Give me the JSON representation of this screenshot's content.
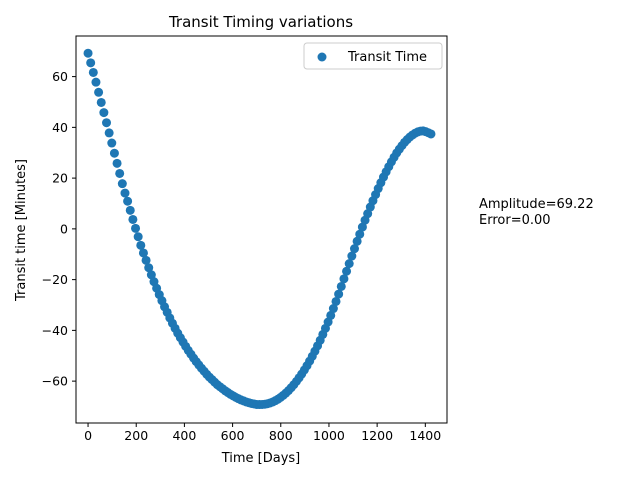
{
  "chart_data": {
    "type": "scatter",
    "title": "Transit Timing variations",
    "xlabel": "Time [Days]",
    "ylabel": "Transit time [Minutes]",
    "xlim": [
      -50,
      1490
    ],
    "ylim": [
      -76.5,
      76
    ],
    "xticks": [
      0,
      200,
      400,
      600,
      800,
      1000,
      1200,
      1400
    ],
    "yticks": [
      -60,
      -40,
      -20,
      0,
      20,
      40,
      60
    ],
    "grid": false,
    "legend_position": "top-right",
    "series": [
      {
        "name": "Transit Time",
        "color": "#1f77b4",
        "x": [
          0,
          10.95,
          21.9,
          32.85,
          43.8,
          54.75,
          65.7,
          76.65,
          87.6,
          98.55,
          109.5,
          120.45,
          131.4,
          142.35,
          153.3,
          164.25,
          175.2,
          186.15,
          197.1,
          208.05,
          219,
          229.95,
          240.9,
          251.85,
          262.8,
          273.75,
          284.7,
          295.65,
          306.6,
          317.55,
          328.5,
          339.45,
          350.4,
          361.35,
          372.3,
          383.25,
          394.2,
          405.15,
          416.1,
          427.05,
          438,
          448.95,
          459.9,
          470.85,
          481.8,
          492.75,
          503.7,
          514.65,
          525.6,
          536.55,
          547.5,
          558.45,
          569.4,
          580.35,
          591.3,
          602.25,
          613.2,
          624.15,
          635.1,
          646.05,
          657,
          667.95,
          678.9,
          689.85,
          700.8,
          711.75,
          722.7,
          733.65,
          744.6,
          755.55,
          766.5,
          777.45,
          788.4,
          799.35,
          810.3,
          821.25,
          832.2,
          843.15,
          854.1,
          865.05,
          876,
          886.95,
          897.9,
          908.85,
          919.8,
          930.75,
          941.7,
          952.65,
          963.6,
          974.55,
          985.5,
          996.45,
          1007.4,
          1018.35,
          1029.3,
          1040.25,
          1051.2,
          1062.15,
          1073.1,
          1084.05,
          1095,
          1105.95,
          1116.9,
          1127.85,
          1138.8,
          1149.75,
          1160.7,
          1171.65,
          1182.6,
          1193.55,
          1204.5,
          1215.45,
          1226.4,
          1237.35,
          1248.3,
          1259.25,
          1270.2,
          1281.15,
          1292.1,
          1303.05,
          1314,
          1324.95,
          1335.9,
          1346.85,
          1357.8,
          1368.75,
          1379.7,
          1390.65,
          1401.6,
          1412.55,
          1423.5
        ],
        "y": [
          69.22,
          65.42,
          61.62,
          57.82,
          53.82,
          49.82,
          45.82,
          41.82,
          37.82,
          33.82,
          29.82,
          25.82,
          21.82,
          17.82,
          14.1,
          10.9,
          7.3,
          3.7,
          0.2,
          -3.1,
          -6.5,
          -9.5,
          -12.4,
          -15.3,
          -18.1,
          -20.8,
          -23.4,
          -25.9,
          -28.3,
          -30.7,
          -32.9,
          -35.1,
          -37.2,
          -39.2,
          -41.1,
          -42.9,
          -44.6,
          -46.3,
          -47.9,
          -49.4,
          -50.9,
          -52.3,
          -53.6,
          -54.9,
          -56.1,
          -57.3,
          -58.4,
          -59.4,
          -60.4,
          -61.4,
          -62.2,
          -63.0,
          -63.8,
          -64.5,
          -65.2,
          -65.8,
          -66.4,
          -66.9,
          -67.4,
          -67.8,
          -68.2,
          -68.5,
          -68.8,
          -69.0,
          -69.2,
          -69.22,
          -69.2,
          -69.1,
          -68.9,
          -68.6,
          -68.2,
          -67.7,
          -67.1,
          -66.4,
          -65.6,
          -64.7,
          -63.7,
          -62.6,
          -61.4,
          -60.1,
          -58.7,
          -57.2,
          -55.6,
          -53.9,
          -52.1,
          -50.2,
          -48.2,
          -46.1,
          -43.9,
          -41.6,
          -39.2,
          -36.7,
          -34.1,
          -31.4,
          -28.6,
          -25.7,
          -22.7,
          -19.7,
          -16.7,
          -13.7,
          -10.7,
          -7.8,
          -4.9,
          -2.1,
          0.7,
          3.4,
          6.0,
          8.6,
          11.1,
          13.5,
          15.9,
          18.2,
          20.4,
          22.5,
          24.5,
          26.4,
          28.2,
          29.9,
          31.4,
          32.8,
          34.1,
          35.2,
          36.2,
          37.0,
          37.7,
          38.2,
          38.5,
          38.6,
          38.3,
          37.9,
          37.4
        ]
      }
    ],
    "annotations": [
      "Amplitude=69.22",
      "Error=0.00"
    ]
  }
}
